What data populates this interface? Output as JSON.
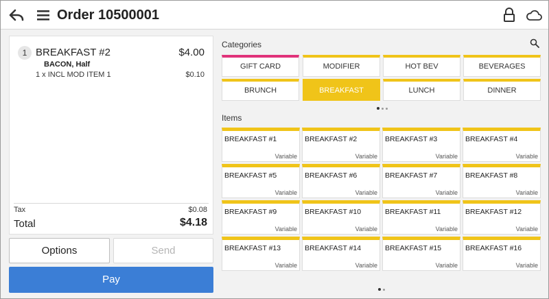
{
  "header": {
    "title": "Order 10500001",
    "icons": [
      "back-arrow-icon",
      "hamburger-menu-icon",
      "lock-icon",
      "cloud-icon"
    ]
  },
  "order": {
    "line": {
      "number": "1",
      "name": "BREAKFAST #2",
      "price": "$4.00",
      "modifier": "BACON, Half",
      "sub_item": "1 x  INCL MOD ITEM 1",
      "sub_price": "$0.10"
    },
    "tax_label": "Tax",
    "tax_value": "$0.08",
    "total_label": "Total",
    "total_value": "$4.18"
  },
  "actions": {
    "options_label": "Options",
    "send_label": "Send",
    "pay_label": "Pay"
  },
  "categories": {
    "label": "Categories",
    "items": [
      {
        "label": "GIFT CARD",
        "color": "#e0337a"
      },
      {
        "label": "MODIFIER",
        "color": "#f0c419"
      },
      {
        "label": "HOT BEV",
        "color": "#f0c419"
      },
      {
        "label": "BEVERAGES",
        "color": "#f0c419"
      },
      {
        "label": "BRUNCH",
        "color": "#f0c419"
      },
      {
        "label": "BREAKFAST",
        "color": "#f0c419",
        "selected": true
      },
      {
        "label": "LUNCH",
        "color": "#f0c419"
      },
      {
        "label": "DINNER",
        "color": "#f0c419"
      }
    ]
  },
  "items": {
    "label": "Items",
    "list": [
      {
        "name": "BREAKFAST #1",
        "price": "Variable"
      },
      {
        "name": "BREAKFAST #2",
        "price": "Variable"
      },
      {
        "name": "BREAKFAST #3",
        "price": "Variable"
      },
      {
        "name": "BREAKFAST #4",
        "price": "Variable"
      },
      {
        "name": "BREAKFAST #5",
        "price": "Variable"
      },
      {
        "name": "BREAKFAST #6",
        "price": "Variable"
      },
      {
        "name": "BREAKFAST #7",
        "price": "Variable"
      },
      {
        "name": "BREAKFAST #8",
        "price": "Variable"
      },
      {
        "name": "BREAKFAST #9",
        "price": "Variable"
      },
      {
        "name": "BREAKFAST #10",
        "price": "Variable"
      },
      {
        "name": "BREAKFAST #11",
        "price": "Variable"
      },
      {
        "name": "BREAKFAST #12",
        "price": "Variable"
      },
      {
        "name": "BREAKFAST #13",
        "price": "Variable"
      },
      {
        "name": "BREAKFAST #14",
        "price": "Variable"
      },
      {
        "name": "BREAKFAST #15",
        "price": "Variable"
      },
      {
        "name": "BREAKFAST #16",
        "price": "Variable"
      }
    ]
  },
  "colors": {
    "accent_yellow": "#f0c419",
    "accent_pink": "#e0337a",
    "pay_blue": "#3b7ed6"
  }
}
